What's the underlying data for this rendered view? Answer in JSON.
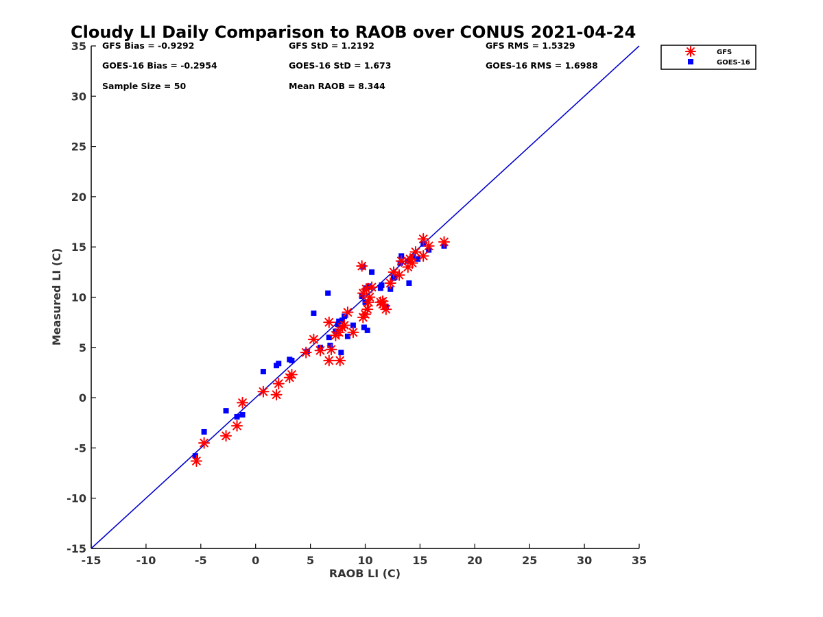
{
  "chart_data": {
    "type": "scatter",
    "title": "Cloudy LI Daily Comparison to RAOB over CONUS 2021-04-24",
    "xlabel": "RAOB LI (C)",
    "ylabel": "Measured LI (C)",
    "xlim": [
      -15,
      35
    ],
    "ylim": [
      -15,
      35
    ],
    "xticks": [
      "-15",
      "-10",
      "-5",
      "0",
      "5",
      "10",
      "15",
      "20",
      "25",
      "30",
      "35"
    ],
    "yticks": [
      "-15",
      "-10",
      "-5",
      "0",
      "5",
      "10",
      "15",
      "20",
      "25",
      "30",
      "35"
    ],
    "grid": false,
    "legend_position": "outside top-right",
    "reference_line": {
      "from": [
        -15,
        -15
      ],
      "to": [
        35,
        35
      ],
      "color": "#0000cc"
    },
    "stats": {
      "gfs_bias": "GFS Bias = -0.9292",
      "gfs_std": "GFS StD = 1.2192",
      "gfs_rms": "GFS RMS = 1.5329",
      "goes_bias": "GOES-16 Bias = -0.2954",
      "goes_std": "GOES-16 StD = 1.673",
      "goes_rms": "GOES-16 RMS = 1.6988",
      "sample_size": "Sample Size = 50",
      "mean_raob": "Mean RAOB = 8.344"
    },
    "series": [
      {
        "name": "GFS",
        "marker": "asterisk",
        "color": "#ff0000",
        "x": [
          -5.4,
          -4.7,
          -2.7,
          -1.7,
          -1.2,
          0.7,
          1.9,
          2.1,
          3.1,
          3.3,
          4.6,
          5.3,
          5.9,
          6.7,
          6.7,
          6.9,
          7.3,
          7.6,
          7.7,
          7.9,
          8.1,
          8.4,
          8.9,
          9.7,
          9.8,
          9.8,
          10.0,
          10.1,
          10.2,
          10.3,
          10.4,
          10.6,
          11.4,
          11.6,
          11.6,
          11.9,
          12.3,
          12.6,
          13.1,
          13.3,
          13.9,
          14.1,
          14.3,
          14.6,
          15.3,
          15.3,
          15.8,
          17.2
        ],
        "y": [
          -6.3,
          -4.5,
          -3.8,
          -2.8,
          -0.5,
          0.6,
          0.3,
          1.4,
          2.0,
          2.3,
          4.5,
          5.8,
          4.7,
          7.5,
          3.7,
          4.8,
          6.2,
          6.5,
          3.7,
          7.0,
          7.2,
          8.5,
          6.5,
          13.1,
          8.0,
          10.4,
          8.3,
          10.8,
          8.8,
          9.5,
          10.0,
          11.0,
          9.5,
          9.3,
          9.6,
          8.8,
          11.4,
          12.5,
          12.2,
          13.6,
          13.0,
          13.8,
          13.4,
          14.5,
          14.1,
          15.8,
          15.1,
          15.5
        ]
      },
      {
        "name": "GOES-16",
        "marker": "square",
        "color": "#0000ff",
        "x": [
          -5.5,
          -4.7,
          -2.7,
          -1.7,
          -1.2,
          0.7,
          1.9,
          2.1,
          3.1,
          3.3,
          4.7,
          5.3,
          5.9,
          6.6,
          6.7,
          6.8,
          7.3,
          7.5,
          7.6,
          7.8,
          7.9,
          8.1,
          8.4,
          8.9,
          9.7,
          9.8,
          9.9,
          10.0,
          10.1,
          10.2,
          10.3,
          10.6,
          11.4,
          11.5,
          11.9,
          12.3,
          12.6,
          12.7,
          13.2,
          13.3,
          13.9,
          14.0,
          14.3,
          14.8,
          15.3,
          15.8,
          17.2
        ],
        "y": [
          -5.8,
          -3.4,
          -1.3,
          -1.9,
          -1.7,
          2.6,
          3.2,
          3.4,
          3.8,
          3.7,
          4.6,
          8.4,
          5.0,
          10.4,
          6.0,
          5.2,
          6.6,
          7.3,
          7.6,
          4.5,
          7.7,
          8.1,
          6.1,
          7.2,
          10.1,
          13.0,
          7.0,
          9.5,
          10.9,
          6.7,
          11.1,
          12.5,
          10.9,
          11.2,
          9.0,
          10.8,
          11.9,
          12.0,
          13.4,
          14.1,
          13.6,
          11.4,
          14.0,
          13.8,
          15.3,
          14.7,
          15.1
        ]
      }
    ]
  }
}
